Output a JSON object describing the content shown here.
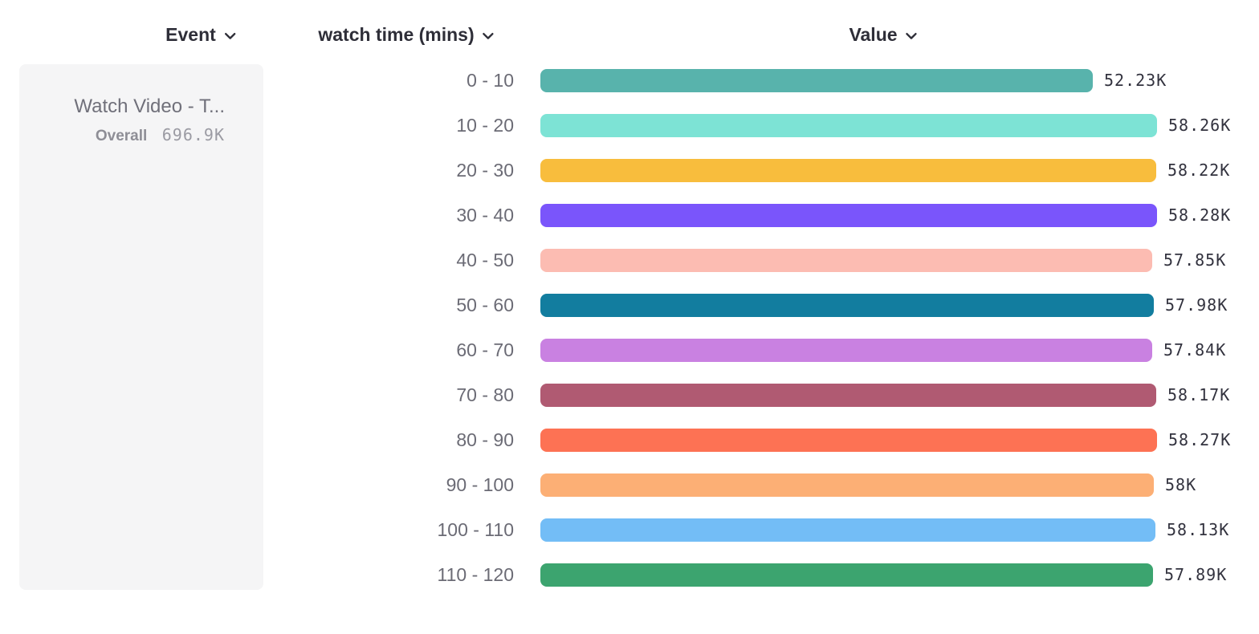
{
  "columns": {
    "event": {
      "label": "Event",
      "icon": "chevron-down-icon"
    },
    "breakdown": {
      "label": "watch time (mins)",
      "icon": "chevron-down-icon"
    },
    "value": {
      "label": "Value",
      "icon": "chevron-down-icon"
    }
  },
  "event_card": {
    "title": "Watch Video - T...",
    "overall_label": "Overall",
    "overall_value": "696.9K"
  },
  "chart_data": {
    "type": "bar",
    "orientation": "horizontal",
    "title": "",
    "xlabel": "Value",
    "ylabel": "watch time (mins)",
    "grid": false,
    "xlim": [
      0,
      58280
    ],
    "categories": [
      "0 - 10",
      "10 - 20",
      "20 - 30",
      "30 - 40",
      "40 - 50",
      "50 - 60",
      "60 - 70",
      "70 - 80",
      "80 - 90",
      "90 - 100",
      "100 - 110",
      "110 - 120"
    ],
    "values": [
      52230,
      58260,
      58220,
      58280,
      57850,
      57980,
      57840,
      58170,
      58270,
      58000,
      58130,
      57890
    ],
    "value_labels": [
      "52.23K",
      "58.26K",
      "58.22K",
      "58.28K",
      "57.85K",
      "57.98K",
      "57.84K",
      "58.17K",
      "58.27K",
      "58K",
      "58.13K",
      "57.89K"
    ],
    "colors": [
      "#58b3ac",
      "#7de3d5",
      "#f8bd3d",
      "#7a55fb",
      "#fcbcb2",
      "#127d9f",
      "#c981e1",
      "#b05a72",
      "#fd7254",
      "#fcaf75",
      "#73bdf6",
      "#3ca46f"
    ],
    "value_label_position": "right-of-bar"
  }
}
